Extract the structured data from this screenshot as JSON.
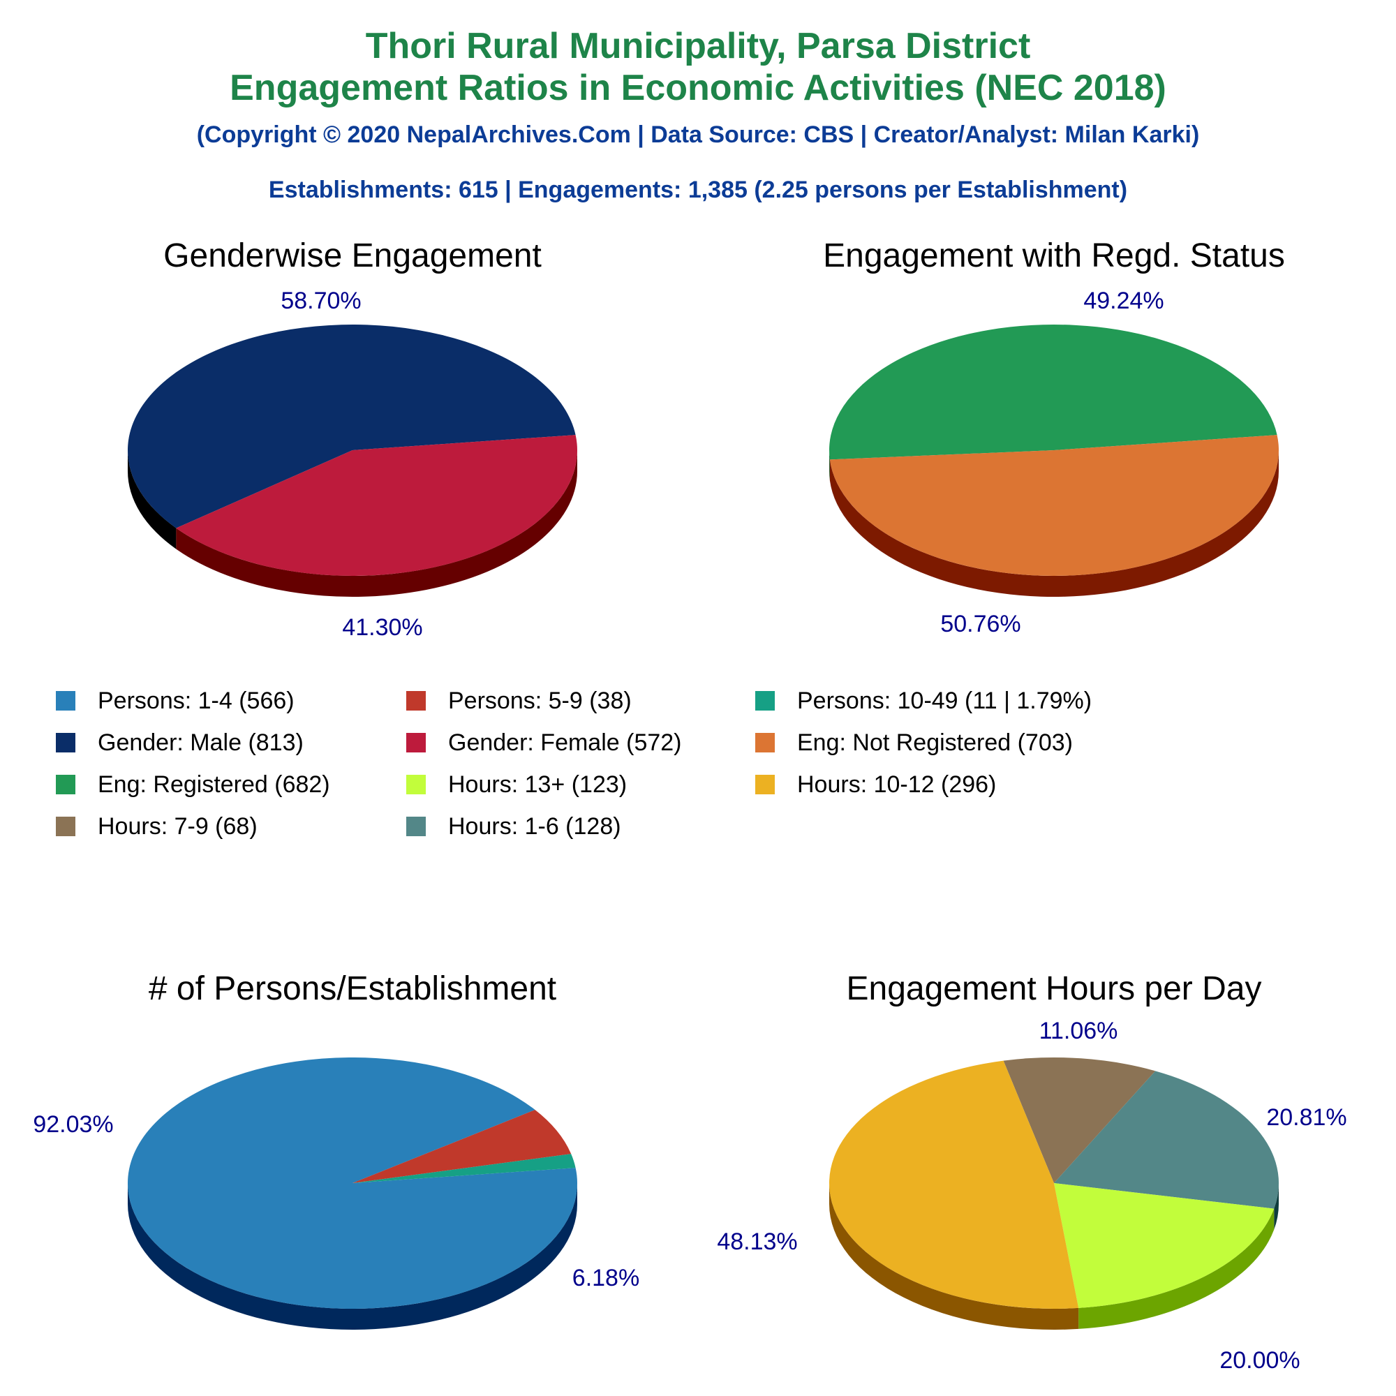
{
  "header": {
    "title_line1": "Thori Rural Municipality, Parsa District",
    "title_line2": "Engagement Ratios in Economic Activities (NEC 2018)",
    "copyright": "(Copyright © 2020 NepalArchives.Com | Data Source: CBS | Creator/Analyst: Milan Karki)",
    "summary": "Establishments: 615 | Engagements: 1,385 (2.25 persons per Establishment)"
  },
  "colors": {
    "title": "#1e8449",
    "subtitle": "#0c3c96",
    "pct_label": "#00008b"
  },
  "chart_data": [
    {
      "type": "pie",
      "title": "Genderwise Engagement",
      "slices": [
        {
          "label": "Gender: Male",
          "value": 813,
          "pct": "58.70%",
          "color": "#0a2d68",
          "side": "#000000"
        },
        {
          "label": "Gender: Female",
          "value": 572,
          "pct": "41.30%",
          "color": "#bd1b3c",
          "side": "#650000"
        }
      ]
    },
    {
      "type": "pie",
      "title": "Engagement with Regd. Status",
      "slices": [
        {
          "label": "Eng: Registered",
          "value": 682,
          "pct": "49.24%",
          "color": "#229a55",
          "side": "#0b5a25"
        },
        {
          "label": "Eng: Not Registered",
          "value": 703,
          "pct": "50.76%",
          "color": "#dc7533",
          "side": "#7d1a00"
        }
      ]
    },
    {
      "type": "pie",
      "title": "# of Persons/Establishment",
      "slices": [
        {
          "label": "Persons: 1-4",
          "value": 566,
          "pct": "92.03%",
          "color": "#2980b9",
          "side": "#00285c"
        },
        {
          "label": "Persons: 5-9",
          "value": 38,
          "pct": "6.18%",
          "color": "#c0392b",
          "side": "#6b0000"
        },
        {
          "label": "Persons: 10-49",
          "value": 11,
          "pct": "",
          "color": "#16a085",
          "side": "#00463a"
        }
      ]
    },
    {
      "type": "pie",
      "title": "Engagement Hours per Day",
      "slices": [
        {
          "label": "Hours: 7-9",
          "value": 68,
          "pct": "11.06%",
          "color": "#8b7355",
          "side": "#443014"
        },
        {
          "label": "Hours: 1-6",
          "value": 128,
          "pct": "20.81%",
          "color": "#538788",
          "side": "#0e3c3d"
        },
        {
          "label": "Hours: 13+",
          "value": 123,
          "pct": "20.00%",
          "color": "#c2fd3b",
          "side": "#6ca500"
        },
        {
          "label": "Hours: 10-12",
          "value": 296,
          "pct": "48.13%",
          "color": "#ecb122",
          "side": "#8b5600"
        }
      ]
    }
  ],
  "legend": [
    {
      "text": "Persons: 1-4 (566)",
      "color": "#2980b9"
    },
    {
      "text": "Persons: 5-9 (38)",
      "color": "#c0392b"
    },
    {
      "text": "Persons: 10-49 (11 | 1.79%)",
      "color": "#16a085"
    },
    {
      "text": "Gender: Male (813)",
      "color": "#0a2d68"
    },
    {
      "text": "Gender: Female (572)",
      "color": "#bd1b3c"
    },
    {
      "text": "Eng: Not Registered (703)",
      "color": "#dc7533"
    },
    {
      "text": "Eng: Registered (682)",
      "color": "#229a55"
    },
    {
      "text": "Hours: 13+ (123)",
      "color": "#c2fd3b"
    },
    {
      "text": "Hours: 10-12 (296)",
      "color": "#ecb122"
    },
    {
      "text": "Hours: 7-9 (68)",
      "color": "#8b7355"
    },
    {
      "text": "Hours: 1-6 (128)",
      "color": "#538788"
    }
  ]
}
